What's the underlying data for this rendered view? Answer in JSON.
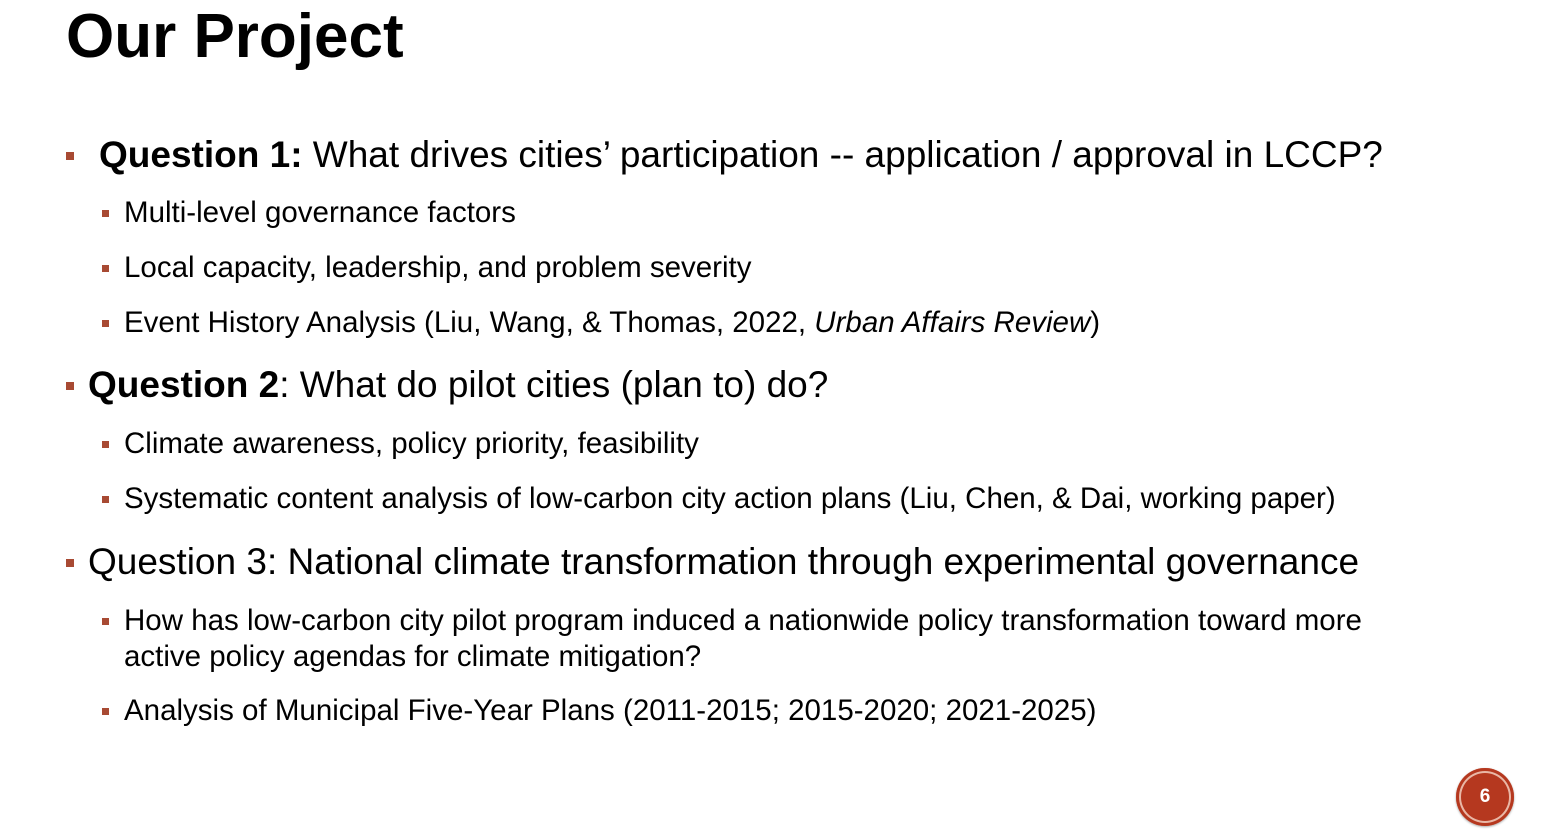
{
  "slide": {
    "title": "Our Project",
    "page_number": "6"
  },
  "bullets": [
    {
      "label": "Question 1:",
      "text": " What drives cities’ participation --  application / approval in LCCP?",
      "subs": [
        "Multi-level governance factors",
        "Local capacity, leadership, and problem severity",
        {
          "before": "Event History Analysis (Liu, Wang, & Thomas, 2022, ",
          "italic": "Urban Affairs Review",
          "after": ")"
        }
      ]
    },
    {
      "label": "Question 2",
      "text": ": What do pilot cities (plan to) do?",
      "subs": [
        "Climate awareness, policy priority, feasibility",
        "Systematic content analysis of low-carbon city action plans (Liu, Chen, & Dai, working paper)"
      ]
    },
    {
      "label": "",
      "text": "Question 3: National climate transformation through experimental governance",
      "subs": [
        "How has low-carbon city pilot program induced a nationwide policy transformation toward more active policy agendas for climate mitigation?",
        "Analysis of Municipal Five-Year Plans (2011-2015; 2015-2020; 2021-2025)"
      ]
    }
  ],
  "theme": {
    "bullet_color": "#a84a33",
    "badge_color": "#b5381f"
  }
}
